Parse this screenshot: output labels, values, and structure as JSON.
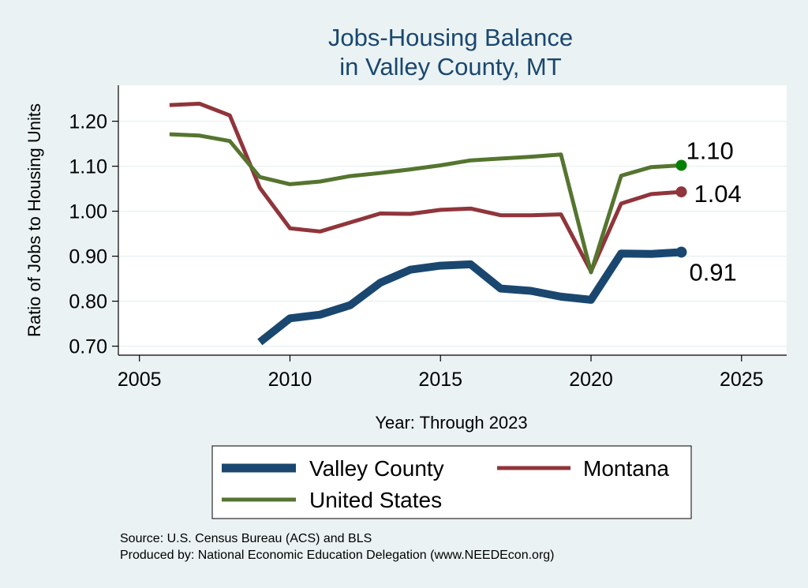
{
  "chart_data": {
    "type": "line",
    "title": [
      "Jobs-Housing Balance",
      "in Valley County, MT"
    ],
    "xlabel": "Year: Through 2023",
    "ylabel": "Ratio of Jobs to Housing Units",
    "xlim": [
      2004.3,
      2026.5
    ],
    "ylim": [
      0.68,
      1.28
    ],
    "xticks": [
      2005,
      2010,
      2015,
      2020,
      2025
    ],
    "yticks": [
      0.7,
      0.8,
      0.9,
      1.0,
      1.1,
      1.2
    ],
    "ytick_labels": [
      "0.70",
      "0.80",
      "0.90",
      "1.00",
      "1.10",
      "1.20"
    ],
    "grid": true,
    "legend_position": "bottom",
    "series": [
      {
        "name": "Valley County",
        "color": "#1a476f",
        "x": [
          2009,
          2010,
          2011,
          2012,
          2013,
          2014,
          2015,
          2016,
          2017,
          2018,
          2019,
          2020,
          2021,
          2022,
          2023
        ],
        "y": [
          0.709,
          0.762,
          0.77,
          0.791,
          0.841,
          0.87,
          0.879,
          0.882,
          0.828,
          0.823,
          0.81,
          0.803,
          0.906,
          0.905,
          0.909
        ],
        "end_label": "0.91"
      },
      {
        "name": "Montana",
        "color": "#90353b",
        "x": [
          2006,
          2007,
          2008,
          2009,
          2010,
          2011,
          2012,
          2013,
          2014,
          2015,
          2016,
          2017,
          2018,
          2019,
          2020,
          2021,
          2022,
          2023
        ],
        "y": [
          1.236,
          1.239,
          1.213,
          1.052,
          0.962,
          0.955,
          0.975,
          0.995,
          0.994,
          1.003,
          1.006,
          0.991,
          0.991,
          0.993,
          0.866,
          1.017,
          1.038,
          1.043
        ],
        "end_label": "1.04"
      },
      {
        "name": "United States",
        "color": "#55752f",
        "x": [
          2006,
          2007,
          2008,
          2009,
          2010,
          2011,
          2012,
          2013,
          2014,
          2015,
          2016,
          2017,
          2018,
          2019,
          2020,
          2021,
          2022,
          2023
        ],
        "y": [
          1.171,
          1.168,
          1.156,
          1.076,
          1.06,
          1.066,
          1.078,
          1.085,
          1.093,
          1.102,
          1.113,
          1.117,
          1.121,
          1.126,
          0.864,
          1.079,
          1.098,
          1.102
        ],
        "end_label": "1.10"
      }
    ],
    "end_marker_colors": {
      "Valley County": "#1a476f",
      "Montana": "#90353b",
      "United States": "#008000"
    },
    "notes": [
      "Source: U.S. Census Bureau (ACS) and BLS",
      "Produced by: National Economic Education Delegation (www.NEEDEcon.org)"
    ]
  }
}
